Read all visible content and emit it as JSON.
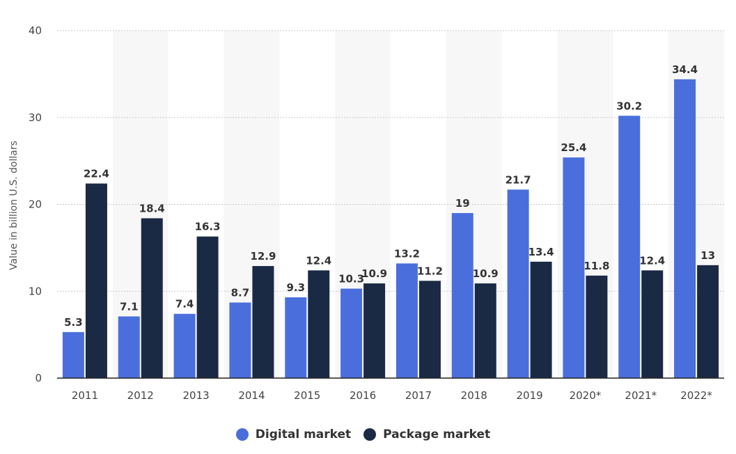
{
  "chart_data": {
    "type": "bar",
    "categories": [
      "2011",
      "2012",
      "2013",
      "2014",
      "2015",
      "2016",
      "2017",
      "2018",
      "2019",
      "2020*",
      "2021*",
      "2022*"
    ],
    "series": [
      {
        "name": "Digital market",
        "color": "#4a6fdc",
        "values": [
          5.3,
          7.1,
          7.4,
          8.7,
          9.3,
          10.3,
          13.2,
          19,
          21.7,
          25.4,
          30.2,
          34.4
        ]
      },
      {
        "name": "Package market",
        "color": "#1a2a45",
        "values": [
          22.4,
          18.4,
          16.3,
          12.9,
          12.4,
          10.9,
          11.2,
          10.9,
          13.4,
          11.8,
          12.4,
          13
        ]
      }
    ],
    "ylabel": "Value in billion U.S. dollars",
    "ylim": [
      0,
      40
    ],
    "yticks": [
      0,
      10,
      20,
      30,
      40
    ],
    "grid": true,
    "legend_position": "bottom-center",
    "band_color": "#f7f7f7"
  }
}
